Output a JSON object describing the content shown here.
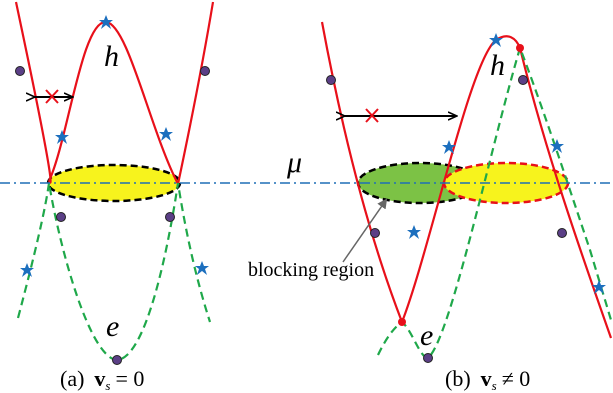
{
  "figure": {
    "panel_a": {
      "band_h_label": "h",
      "band_e_label": "e",
      "caption_letter": "(a)",
      "caption_vec": "v",
      "caption_sub": "s",
      "caption_rel": "= 0"
    },
    "panel_b": {
      "band_h_label": "h",
      "band_e_label": "e",
      "caption_letter": "(b)",
      "caption_vec": "v",
      "caption_sub": "s",
      "caption_rel": "≠ 0",
      "annotation": "blocking region"
    },
    "chemical_potential_label": "μ",
    "colors": {
      "hole_band": "#e8101a",
      "electron_band": "#1fa84a",
      "chemical_potential_line": "#1e6fb5",
      "fermi_surface_a": "#f7f31d",
      "fermi_surface_b_shifted": "#f7f31d",
      "blocking_region": "#7cc245",
      "cross_mark": "#e8101a",
      "star_marker": "#1c6fbe",
      "dot_marker": "#5b3f86"
    }
  }
}
